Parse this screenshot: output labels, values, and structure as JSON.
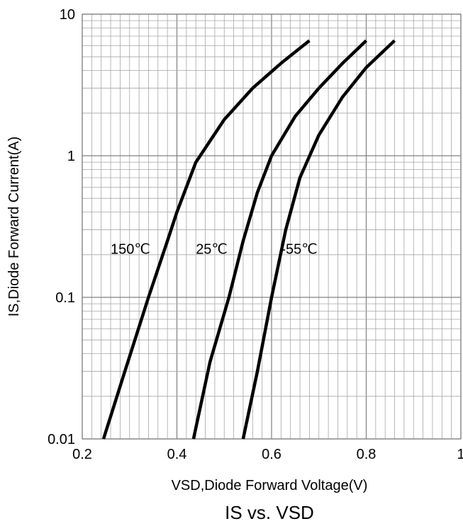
{
  "chart_data": {
    "type": "line",
    "title": "IS vs. VSD",
    "xlabel": "VSD,Diode Forward Voltage(V)",
    "ylabel": "IS,Diode Forward Current(A)",
    "xlim": [
      0.2,
      1
    ],
    "ylim": [
      0.01,
      10
    ],
    "yscale": "log",
    "grid": true,
    "x_ticks": [
      0.2,
      0.4,
      0.6,
      0.8,
      1
    ],
    "x_tick_labels": [
      "0.2",
      "0.4",
      "0.6",
      "0.8",
      "1"
    ],
    "y_ticks": [
      0.01,
      0.1,
      1,
      10
    ],
    "y_tick_labels": [
      "0.01",
      "0.1",
      "1",
      "10"
    ],
    "series": [
      {
        "name": "150℃",
        "x": [
          0.245,
          0.29,
          0.34,
          0.38,
          0.4,
          0.44,
          0.5,
          0.56,
          0.62,
          0.68
        ],
        "y": [
          0.01,
          0.03,
          0.1,
          0.25,
          0.4,
          0.9,
          1.8,
          3.0,
          4.5,
          6.5
        ]
      },
      {
        "name": "25℃",
        "x": [
          0.435,
          0.47,
          0.51,
          0.54,
          0.57,
          0.6,
          0.65,
          0.7,
          0.75,
          0.8
        ],
        "y": [
          0.01,
          0.035,
          0.1,
          0.25,
          0.55,
          1.0,
          1.9,
          3.0,
          4.5,
          6.5
        ]
      },
      {
        "name": "-55℃",
        "x": [
          0.54,
          0.57,
          0.6,
          0.63,
          0.66,
          0.7,
          0.75,
          0.8,
          0.86
        ],
        "y": [
          0.01,
          0.03,
          0.1,
          0.3,
          0.7,
          1.4,
          2.6,
          4.2,
          6.5
        ]
      }
    ],
    "series_labels": [
      {
        "text": "150℃",
        "x": 0.26,
        "y": 0.22
      },
      {
        "text": "25℃",
        "x": 0.44,
        "y": 0.22
      },
      {
        "text": "-55℃",
        "x": 0.62,
        "y": 0.22
      }
    ],
    "colors": {
      "line": "#000000",
      "grid": "#a6a6a6",
      "axis": "#808080"
    }
  }
}
